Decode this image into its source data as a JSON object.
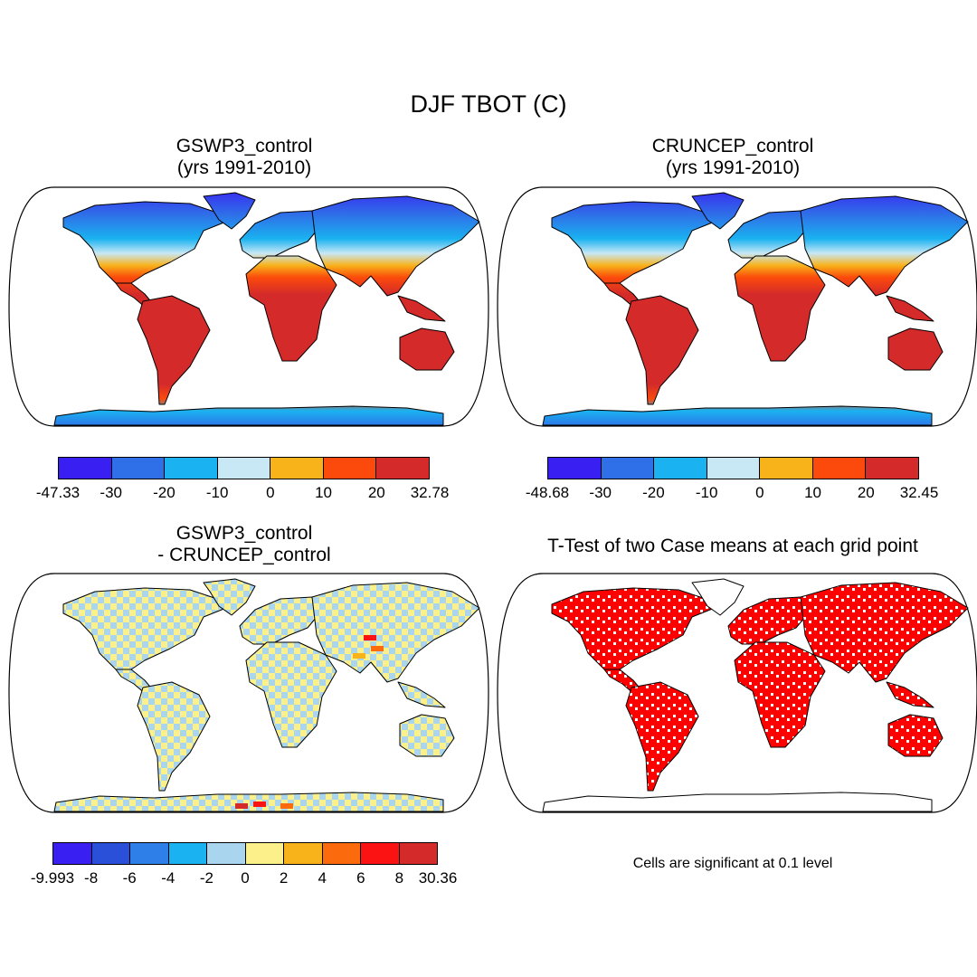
{
  "title": "DJF TBOT (C)",
  "panels": [
    {
      "id": "p1",
      "title_lines": [
        "GSWP3_control",
        "(yrs 1991-2010)"
      ],
      "colorbar": {
        "colors": [
          "#3a1ff2",
          "#2f6fe8",
          "#1ab2f0",
          "#c9e8f5",
          "#f8b21a",
          "#fb4a0c",
          "#d42a2a"
        ],
        "labels": [
          "-47.33",
          "-30",
          "-20",
          "-10",
          "0",
          "10",
          "20",
          "32.78"
        ]
      }
    },
    {
      "id": "p2",
      "title_lines": [
        "CRUNCEP_control",
        "(yrs 1991-2010)"
      ],
      "colorbar": {
        "colors": [
          "#3a1ff2",
          "#2f6fe8",
          "#1ab2f0",
          "#c9e8f5",
          "#f8b21a",
          "#fb4a0c",
          "#d42a2a"
        ],
        "labels": [
          "-48.68",
          "-30",
          "-20",
          "-10",
          "0",
          "10",
          "20",
          "32.45"
        ]
      }
    },
    {
      "id": "p3",
      "title_lines": [
        "GSWP3_control",
        "- CRUNCEP_control"
      ],
      "colorbar": {
        "colors": [
          "#3a1ff2",
          "#2a4fd8",
          "#2f7fe8",
          "#1ab2f0",
          "#a9d6ee",
          "#fbf08a",
          "#f8b21a",
          "#fb6a0c",
          "#fb1212",
          "#d42a2a"
        ],
        "labels": [
          "-9.993",
          "-8",
          "-6",
          "-4",
          "-2",
          "0",
          "2",
          "4",
          "6",
          "8",
          "30.36"
        ]
      }
    },
    {
      "id": "p4",
      "title_lines": [
        "T-Test of two Case means at each grid point"
      ],
      "note": "Cells are significant at 0.1 level",
      "sig_color": "#ff0000"
    }
  ]
}
